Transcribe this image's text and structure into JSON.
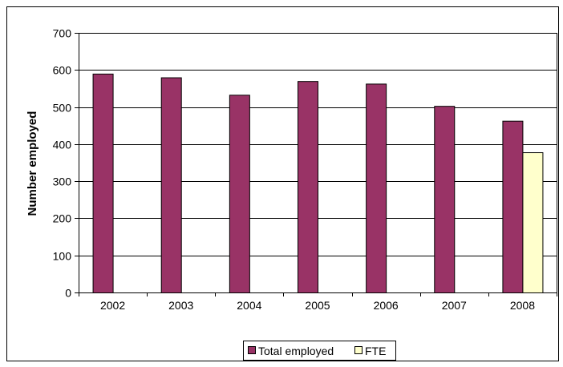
{
  "chart_data": {
    "type": "bar",
    "categories": [
      "2002",
      "2003",
      "2004",
      "2005",
      "2006",
      "2007",
      "2008"
    ],
    "series": [
      {
        "name": "Total employed",
        "color": "#993366",
        "values": [
          590,
          580,
          533,
          570,
          563,
          503,
          463
        ]
      },
      {
        "name": "FTE",
        "color": "#ffffcc",
        "values": [
          null,
          null,
          null,
          null,
          null,
          null,
          378
        ]
      }
    ],
    "ylabel": "Number employed",
    "xlabel": "",
    "ylim": [
      0,
      700
    ],
    "yticks": [
      0,
      100,
      200,
      300,
      400,
      500,
      600,
      700
    ],
    "grid": true,
    "legend_position": "bottom"
  }
}
